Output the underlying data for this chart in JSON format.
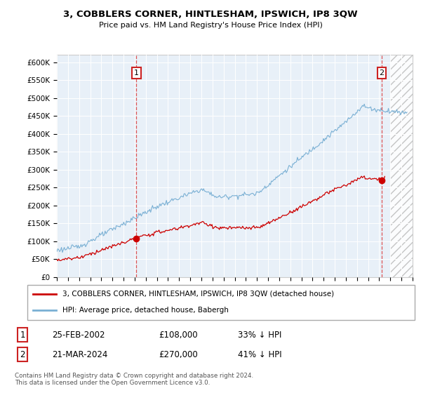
{
  "title": "3, COBBLERS CORNER, HINTLESHAM, IPSWICH, IP8 3QW",
  "subtitle": "Price paid vs. HM Land Registry's House Price Index (HPI)",
  "legend_line1": "3, COBBLERS CORNER, HINTLESHAM, IPSWICH, IP8 3QW (detached house)",
  "legend_line2": "HPI: Average price, detached house, Babergh",
  "annotation1_date": "25-FEB-2002",
  "annotation1_price": "£108,000",
  "annotation1_hpi": "33% ↓ HPI",
  "annotation2_date": "21-MAR-2024",
  "annotation2_price": "£270,000",
  "annotation2_hpi": "41% ↓ HPI",
  "footer": "Contains HM Land Registry data © Crown copyright and database right 2024.\nThis data is licensed under the Open Government Licence v3.0.",
  "price_color": "#cc0000",
  "hpi_line_color": "#7ab0d4",
  "plot_bg": "#e8f0f8",
  "ylim": [
    0,
    620000
  ],
  "yticks": [
    0,
    50000,
    100000,
    150000,
    200000,
    250000,
    300000,
    350000,
    400000,
    450000,
    500000,
    550000,
    600000
  ],
  "sale1_x": 2002.15,
  "sale1_y": 108000,
  "sale2_x": 2024.22,
  "sale2_y": 270000,
  "vline1_x": 2002.15,
  "vline2_x": 2024.22,
  "xmin": 1995,
  "xmax": 2027
}
